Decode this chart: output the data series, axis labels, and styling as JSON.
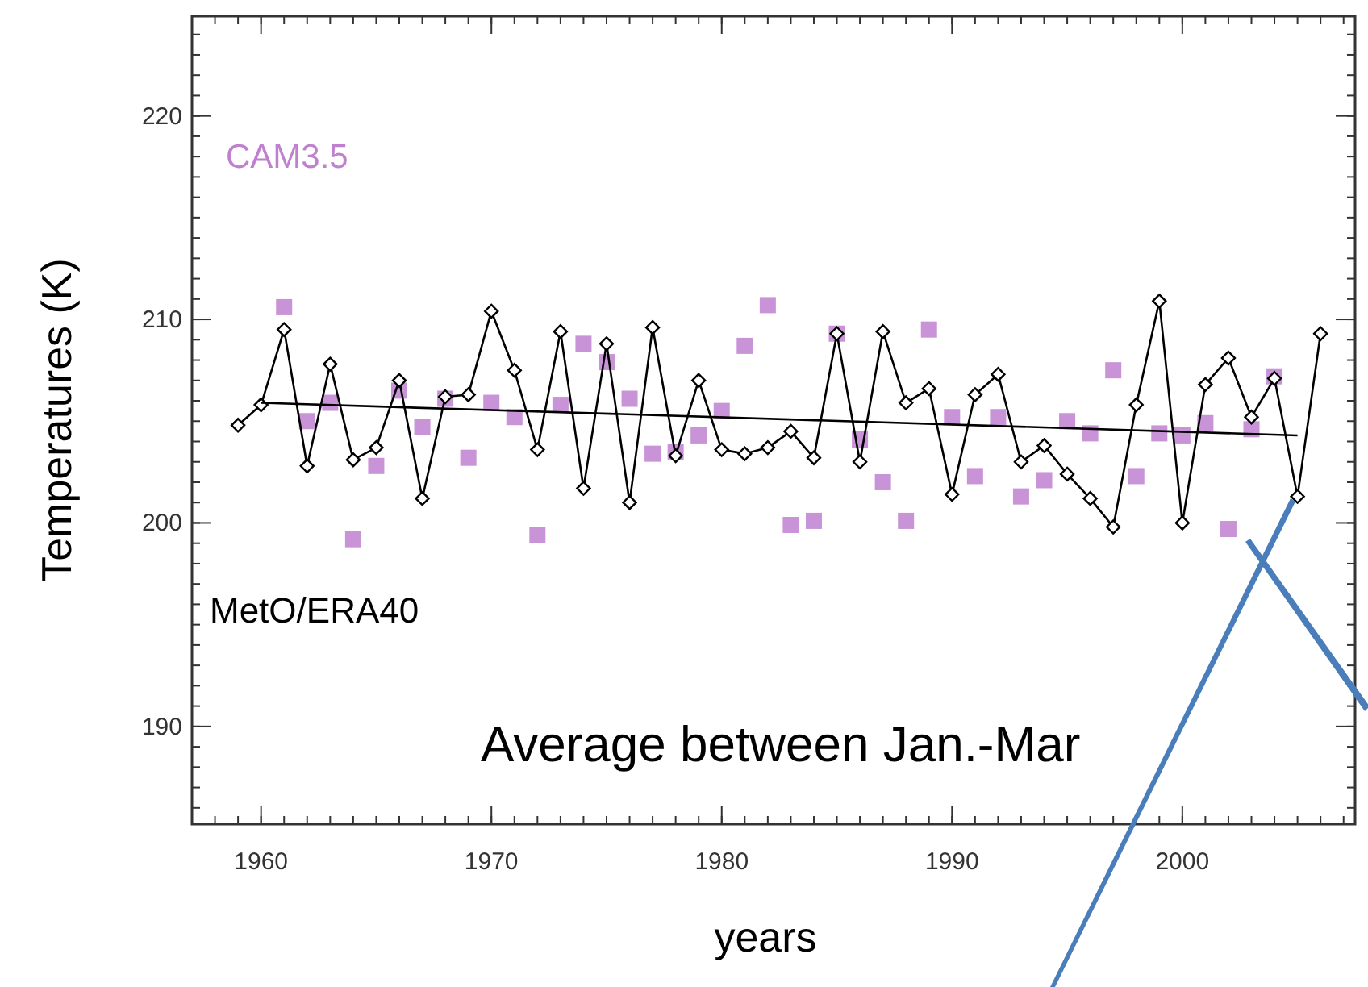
{
  "chart_data": {
    "type": "line",
    "xlabel": "years",
    "ylabel": "Temperatures (K)",
    "xlim": [
      1957,
      2007.5
    ],
    "ylim": [
      185.2,
      224.9
    ],
    "xticks": [
      1960,
      1970,
      1980,
      1990,
      2000
    ],
    "yticks": [
      190,
      200,
      210,
      220
    ],
    "grid": false,
    "annotations": [
      "Average between Jan.-Mar"
    ],
    "series": [
      {
        "name": "MetO/ERA40",
        "color": "#000000",
        "marker": "diamond",
        "x": [
          1959,
          1960,
          1961,
          1962,
          1963,
          1964,
          1965,
          1966,
          1967,
          1968,
          1969,
          1970,
          1971,
          1972,
          1973,
          1974,
          1975,
          1976,
          1977,
          1978,
          1979,
          1980,
          1981,
          1982,
          1983,
          1984,
          1985,
          1986,
          1987,
          1988,
          1989,
          1990,
          1991,
          1992,
          1993,
          1994,
          1995,
          1996,
          1997,
          1998,
          1999,
          2000,
          2001,
          2002,
          2003,
          2004,
          2005,
          2006
        ],
        "values": [
          204.8,
          205.8,
          209.5,
          202.8,
          207.8,
          203.1,
          203.7,
          207.0,
          201.2,
          206.2,
          206.3,
          210.4,
          207.5,
          203.6,
          209.4,
          201.7,
          208.8,
          201.0,
          209.6,
          203.3,
          207.0,
          203.6,
          203.4,
          203.7,
          204.5,
          203.2,
          209.3,
          203.0,
          209.4,
          205.9,
          206.6,
          201.4,
          206.3,
          207.3,
          203.0,
          203.8,
          202.4,
          201.2,
          199.8,
          205.8,
          210.9,
          200.0,
          206.8,
          208.1,
          205.2,
          207.1,
          201.3,
          209.3
        ]
      },
      {
        "name": "CAM3.5",
        "type": "scatter",
        "color": "#c080d0",
        "marker": "square",
        "x": [
          1961,
          1962,
          1963,
          1964,
          1965,
          1966,
          1967,
          1968,
          1969,
          1970,
          1971,
          1972,
          1973,
          1974,
          1975,
          1976,
          1977,
          1978,
          1979,
          1980,
          1981,
          1982,
          1983,
          1984,
          1985,
          1986,
          1987,
          1988,
          1989,
          1990,
          1991,
          1992,
          1993,
          1994,
          1995,
          1996,
          1997,
          1998,
          1999,
          2000,
          2001,
          2002,
          2003,
          2004
        ],
        "values": [
          210.6,
          205.0,
          205.9,
          199.2,
          202.8,
          206.5,
          204.7,
          206.1,
          203.2,
          205.9,
          205.2,
          199.4,
          205.8,
          208.8,
          207.9,
          206.1,
          203.4,
          203.5,
          204.3,
          205.5,
          208.7,
          210.7,
          199.9,
          200.1,
          209.3,
          204.1,
          202.0,
          200.1,
          209.5,
          205.2,
          202.3,
          205.2,
          201.3,
          202.1,
          205.0,
          204.4,
          207.5,
          202.3,
          204.4,
          204.3,
          204.9,
          199.7,
          204.6,
          207.2
        ]
      },
      {
        "color": "#000000",
        "marker": "none",
        "x": [
          1960,
          2005
        ],
        "values": [
          205.9,
          204.3
        ]
      }
    ]
  }
}
